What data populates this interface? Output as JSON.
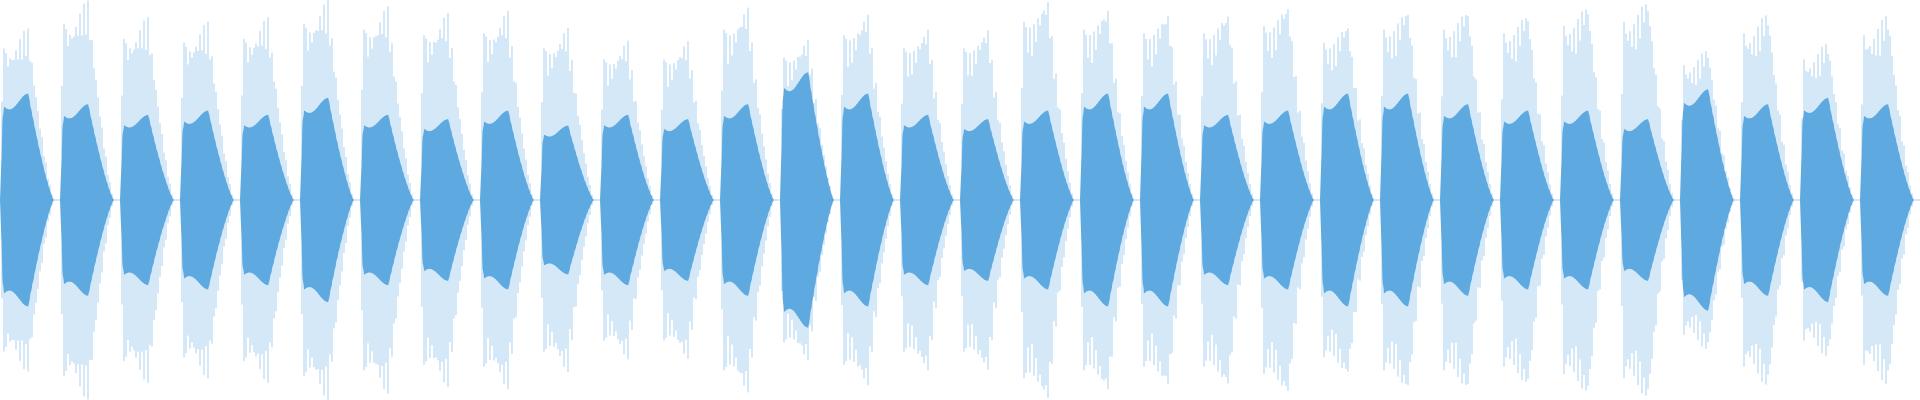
{
  "chart_data": {
    "type": "waveform",
    "ylim": [
      -1,
      1
    ],
    "peak_color": "#a9d0f0",
    "rms_color": "#5eaae0",
    "peaks": [
      0.81,
      0.94,
      0.86,
      0.84,
      0.86,
      0.94,
      0.91,
      0.88,
      0.89,
      0.81,
      0.75,
      0.75,
      0.91,
      0.76,
      0.88,
      0.81,
      0.81,
      0.95,
      0.91,
      0.89,
      0.89,
      0.93,
      0.84,
      0.91,
      0.91,
      0.89,
      0.93,
      0.95,
      0.72,
      0.89,
      0.75,
      0.88
    ],
    "rms": [
      0.5,
      0.45,
      0.4,
      0.42,
      0.4,
      0.48,
      0.4,
      0.38,
      0.42,
      0.35,
      0.4,
      0.38,
      0.45,
      0.6,
      0.5,
      0.4,
      0.38,
      0.42,
      0.5,
      0.5,
      0.4,
      0.42,
      0.5,
      0.5,
      0.45,
      0.42,
      0.42,
      0.38,
      0.52,
      0.45,
      0.48,
      0.45
    ]
  }
}
